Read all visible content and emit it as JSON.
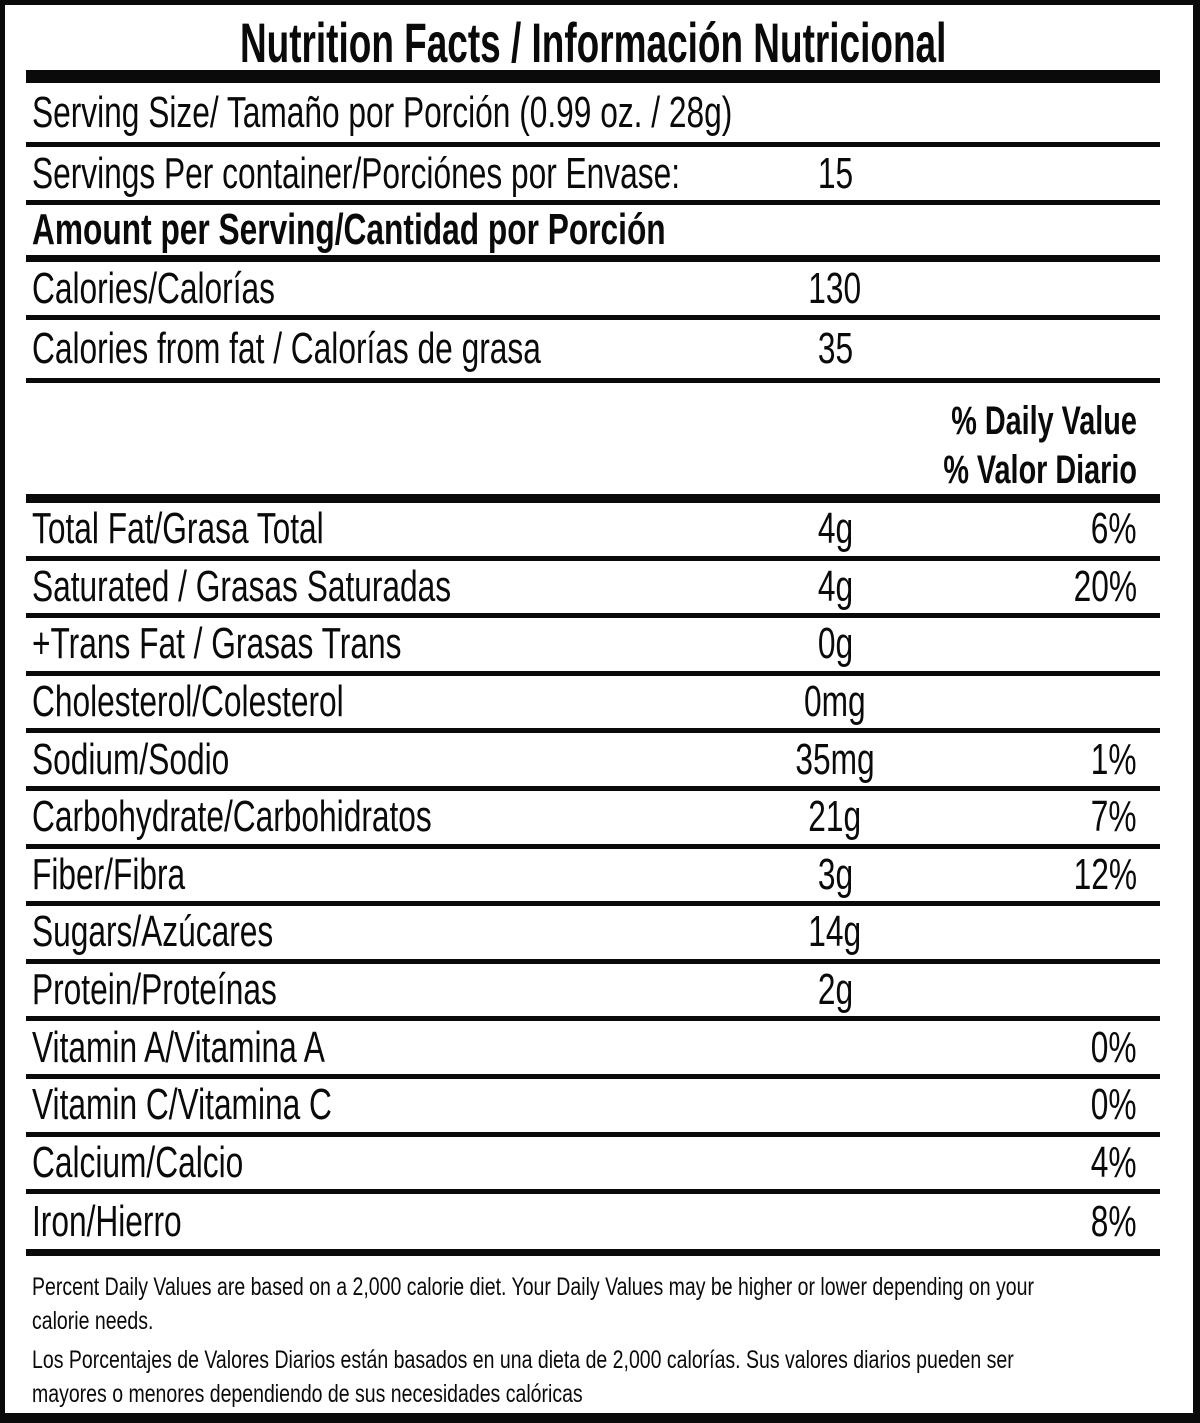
{
  "title": "Nutrition Facts / Información Nutricional",
  "colors": {
    "ink": "#0a0a0a",
    "paper": "#ffffff"
  },
  "serving_section": {
    "serving_size": "Serving Size/ Tamaño por Porción  (0.99 oz. / 28g)",
    "servings_per_container_label": "Servings Per container/Porciónes por Envase:",
    "servings_per_container_value": "15",
    "amount_per_serving": "Amount per Serving/Cantidad por Porción"
  },
  "calorie_rows": [
    {
      "label": "Calories/Calorías",
      "amount": "130"
    },
    {
      "label": "Calories from fat / Calorías de grasa",
      "amount": "35"
    }
  ],
  "daily_value_header": [
    "% Daily Value",
    "% Valor Diario"
  ],
  "nutrient_rows": [
    {
      "label": "Total Fat/Grasa Total",
      "amount": "4g",
      "daily_value": "6%"
    },
    {
      "label": "Saturated / Grasas Saturadas",
      "amount": "4g",
      "daily_value": "20%"
    },
    {
      "label": "+Trans Fat / Grasas Trans",
      "amount": "0g",
      "daily_value": ""
    },
    {
      "label": "Cholesterol/Colesterol",
      "amount": "0mg",
      "daily_value": ""
    },
    {
      "label": "Sodium/Sodio",
      "amount": "35mg",
      "daily_value": "1%"
    },
    {
      "label": "Carbohydrate/Carbohidratos",
      "amount": "21g",
      "daily_value": "7%"
    },
    {
      "label": "Fiber/Fibra",
      "amount": "3g",
      "daily_value": "12%"
    },
    {
      "label": "Sugars/Azúcares",
      "amount": "14g",
      "daily_value": ""
    },
    {
      "label": "Protein/Proteínas",
      "amount": "2g",
      "daily_value": ""
    },
    {
      "label": "Vitamin A/Vitamina A",
      "amount": "",
      "daily_value": "0%"
    },
    {
      "label": "Vitamin C/Vitamina C",
      "amount": "",
      "daily_value": "0%"
    },
    {
      "label": "Calcium/Calcio",
      "amount": "",
      "daily_value": "4%"
    },
    {
      "label": "Iron/Hierro",
      "amount": "",
      "daily_value": "8%"
    }
  ],
  "footnote": {
    "en_lines": [
      "Percent Daily Values are based on a 2,000 calorie diet. Your Daily Values may be higher or lower depending on your",
      "calorie needs."
    ],
    "es_lines": [
      "Los Porcentajes de Valores Diarios están basados en una dieta de 2,000 calorías. Sus valores diarios pueden ser",
      "mayores o menores dependiendo de sus necesidades calóricas"
    ]
  }
}
